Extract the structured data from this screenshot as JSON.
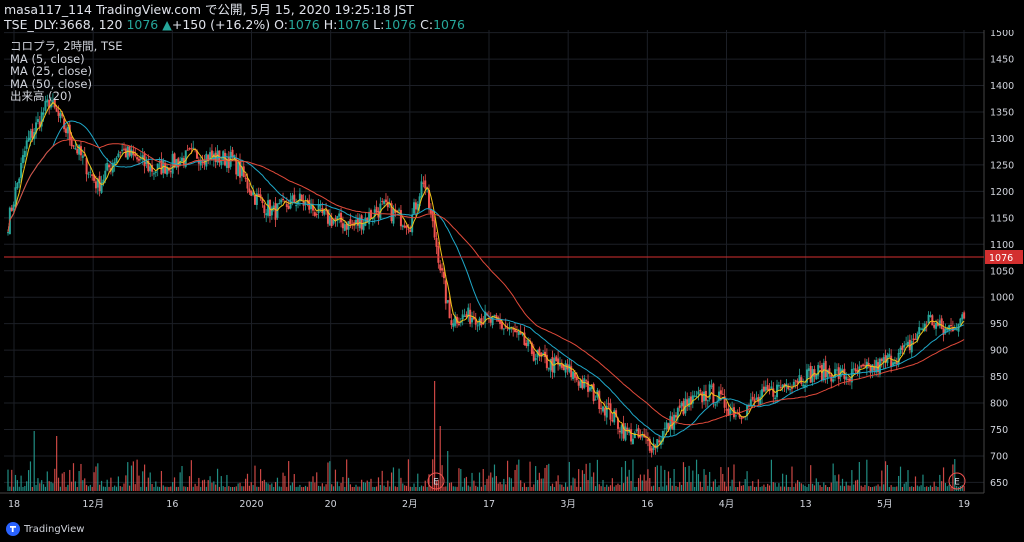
{
  "header": {
    "line1": "masa117_114 TradingView.com で公開, 5月 15, 2020 19:25:18 JST",
    "symbol": "TSE_DLY:3668, 120",
    "price": "1076",
    "change": "+150 (+16.2%)",
    "o_label": "O:",
    "o_val": "1076",
    "h_label": "H:",
    "h_val": "1076",
    "l_label": "L:",
    "l_val": "1076",
    "c_label": "C:",
    "c_val": "1076"
  },
  "legend": {
    "title": "コロプラ, 2時間, TSE",
    "ma5": "MA (5, close)",
    "ma25": "MA (25, close)",
    "ma50": "MA (50, close)",
    "volume": "出来高 (20)"
  },
  "footer": {
    "brand": "TradingView"
  },
  "colors": {
    "background": "#000000",
    "grid": "#1c1f26",
    "up": "#26a69a",
    "down": "#ef5350",
    "ma5": "#f0c419",
    "ma25": "#1fa8c9",
    "ma50": "#e04a3a",
    "price_line": "#d32f2f",
    "axis_text": "#d1d4dc"
  },
  "chart_data": {
    "type": "candlestick",
    "ylim": [
      630,
      1505
    ],
    "y_ticks": [
      650,
      700,
      750,
      800,
      850,
      900,
      950,
      1000,
      1050,
      1100,
      1150,
      1200,
      1250,
      1300,
      1350,
      1400,
      1450,
      1500
    ],
    "x_labels": [
      "18",
      "12月",
      "16",
      "2020",
      "20",
      "2月",
      "17",
      "3月",
      "16",
      "4月",
      "13",
      "5月",
      "19"
    ],
    "current_price": 1076,
    "event_markers": [
      "E",
      "E"
    ],
    "keypoints": [
      {
        "t": 0,
        "p": 1140
      },
      {
        "t": 10,
        "p": 1290
      },
      {
        "t": 22,
        "p": 1370
      },
      {
        "t": 32,
        "p": 1310
      },
      {
        "t": 48,
        "p": 1210
      },
      {
        "t": 60,
        "p": 1280
      },
      {
        "t": 78,
        "p": 1240
      },
      {
        "t": 100,
        "p": 1270
      },
      {
        "t": 120,
        "p": 1260
      },
      {
        "t": 132,
        "p": 1190
      },
      {
        "t": 142,
        "p": 1160
      },
      {
        "t": 155,
        "p": 1185
      },
      {
        "t": 170,
        "p": 1150
      },
      {
        "t": 185,
        "p": 1135
      },
      {
        "t": 200,
        "p": 1170
      },
      {
        "t": 215,
        "p": 1140
      },
      {
        "t": 222,
        "p": 1225
      },
      {
        "t": 230,
        "p": 1080
      },
      {
        "t": 236,
        "p": 960
      },
      {
        "t": 250,
        "p": 965
      },
      {
        "t": 268,
        "p": 940
      },
      {
        "t": 285,
        "p": 880
      },
      {
        "t": 300,
        "p": 860
      },
      {
        "t": 315,
        "p": 810
      },
      {
        "t": 330,
        "p": 745
      },
      {
        "t": 345,
        "p": 720
      },
      {
        "t": 360,
        "p": 790
      },
      {
        "t": 375,
        "p": 820
      },
      {
        "t": 390,
        "p": 780
      },
      {
        "t": 405,
        "p": 815
      },
      {
        "t": 420,
        "p": 845
      },
      {
        "t": 435,
        "p": 860
      },
      {
        "t": 450,
        "p": 850
      },
      {
        "t": 465,
        "p": 870
      },
      {
        "t": 480,
        "p": 900
      },
      {
        "t": 492,
        "p": 960
      },
      {
        "t": 500,
        "p": 935
      },
      {
        "t": 508,
        "p": 955
      }
    ]
  }
}
